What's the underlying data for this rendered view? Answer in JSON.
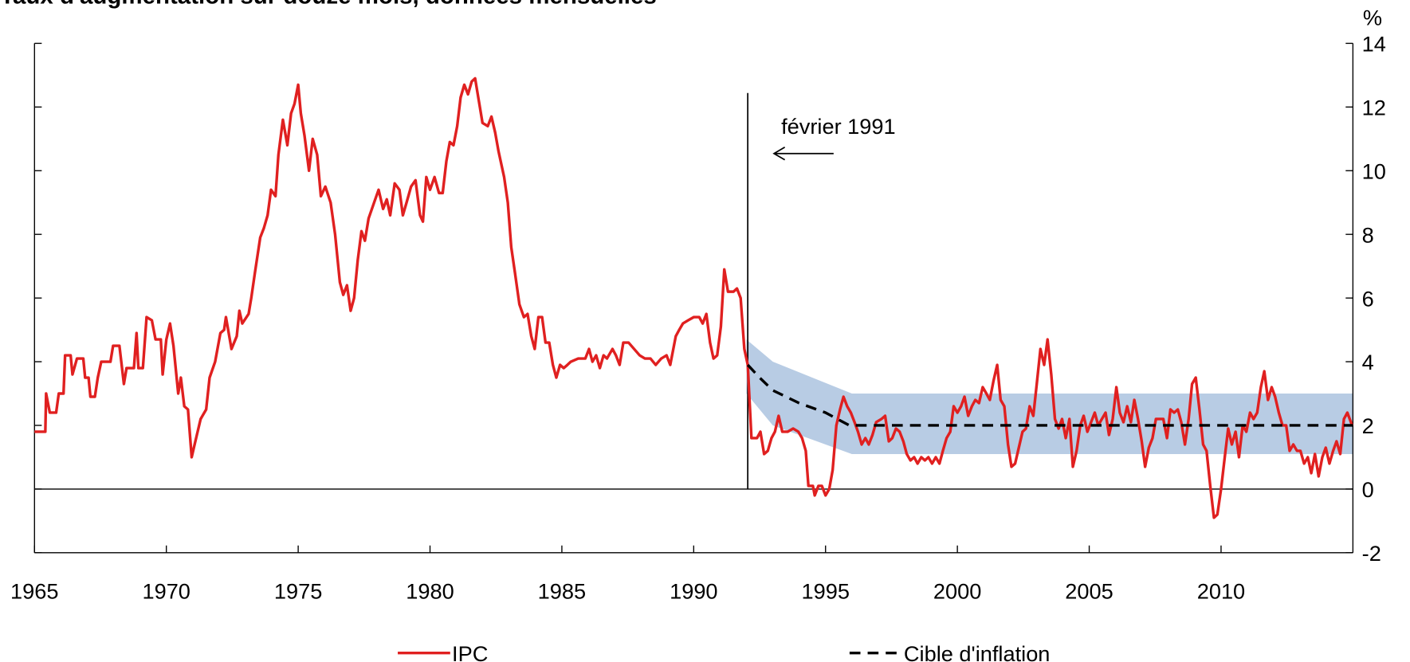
{
  "chart_data": {
    "type": "line",
    "title": "Taux d'augmentation sur douze mois, données mensuelles",
    "y_unit": "%",
    "xlim": [
      1965,
      2015
    ],
    "xticks": [
      1965,
      1970,
      1975,
      1980,
      1985,
      1990,
      1995,
      2000,
      2005,
      2010
    ],
    "ylim": [
      -2,
      14
    ],
    "yticks": [
      -2,
      0,
      2,
      4,
      6,
      8,
      10,
      12,
      14
    ],
    "grid": false,
    "legend": "bottom",
    "annotation": {
      "text": "février 1991",
      "x": 1992.05
    },
    "band": {
      "color": "#b8cce4",
      "x": [
        1992.0,
        1993.0,
        1996.0,
        2015.0
      ],
      "upper": [
        4.7,
        4.0,
        3.0,
        3.0
      ],
      "lower": [
        3.0,
        2.0,
        1.1,
        1.1
      ]
    },
    "series": [
      {
        "name": "IPC",
        "color": "#e02020",
        "style": "solid",
        "x": [
          1965.0,
          1965.41,
          1965.44,
          1965.58,
          1965.82,
          1965.92,
          1966.1,
          1966.16,
          1966.37,
          1966.44,
          1966.61,
          1966.85,
          1966.92,
          1967.05,
          1967.12,
          1967.29,
          1967.4,
          1967.53,
          1967.88,
          1967.98,
          1968.22,
          1968.39,
          1968.49,
          1968.77,
          1968.87,
          1968.94,
          1969.11,
          1969.25,
          1969.45,
          1969.59,
          1969.79,
          1969.86,
          1970.0,
          1970.14,
          1970.27,
          1970.45,
          1970.55,
          1970.68,
          1970.82,
          1970.96,
          1971.1,
          1971.3,
          1971.51,
          1971.64,
          1971.85,
          1972.05,
          1972.19,
          1972.26,
          1972.47,
          1972.67,
          1972.77,
          1972.88,
          1973.12,
          1973.22,
          1973.36,
          1973.56,
          1973.7,
          1973.84,
          1973.97,
          1974.14,
          1974.25,
          1974.42,
          1974.59,
          1974.73,
          1974.86,
          1975.0,
          1975.1,
          1975.24,
          1975.41,
          1975.55,
          1975.72,
          1975.86,
          1976.03,
          1976.23,
          1976.4,
          1976.58,
          1976.71,
          1976.85,
          1976.99,
          1977.12,
          1977.26,
          1977.4,
          1977.53,
          1977.67,
          1977.88,
          1978.05,
          1978.22,
          1978.36,
          1978.49,
          1978.66,
          1978.84,
          1978.97,
          1979.11,
          1979.28,
          1979.45,
          1979.62,
          1979.73,
          1979.86,
          1980.0,
          1980.17,
          1980.34,
          1980.48,
          1980.62,
          1980.75,
          1980.89,
          1981.03,
          1981.16,
          1981.3,
          1981.44,
          1981.58,
          1981.71,
          1981.85,
          1981.99,
          1982.19,
          1982.33,
          1982.47,
          1982.6,
          1982.81,
          1982.95,
          1983.08,
          1983.22,
          1983.39,
          1983.56,
          1983.7,
          1983.84,
          1983.97,
          1984.11,
          1984.25,
          1984.38,
          1984.52,
          1984.66,
          1984.79,
          1984.93,
          1985.07,
          1985.21,
          1985.34,
          1985.62,
          1985.89,
          1986.03,
          1986.16,
          1986.3,
          1986.44,
          1986.58,
          1986.71,
          1986.92,
          1987.05,
          1987.19,
          1987.33,
          1987.53,
          1987.74,
          1987.95,
          1988.15,
          1988.36,
          1988.56,
          1988.77,
          1988.97,
          1989.11,
          1989.32,
          1989.45,
          1989.59,
          1989.79,
          1990.0,
          1990.21,
          1990.34,
          1990.48,
          1990.62,
          1990.75,
          1990.89,
          1991.03,
          1991.16,
          1991.3,
          1991.51,
          1991.64,
          1991.78,
          1991.92,
          1992.05,
          1992.19,
          1992.4,
          1992.53,
          1992.67,
          1992.81,
          1992.95,
          1993.08,
          1993.22,
          1993.36,
          1993.56,
          1993.77,
          1993.97,
          1994.11,
          1994.25,
          1994.35,
          1994.52,
          1994.59,
          1994.73,
          1994.86,
          1995.0,
          1995.14,
          1995.27,
          1995.41,
          1995.55,
          1995.68,
          1995.82,
          1995.96,
          1996.1,
          1996.23,
          1996.37,
          1996.51,
          1996.64,
          1996.78,
          1996.92,
          1997.12,
          1997.26,
          1997.4,
          1997.53,
          1997.67,
          1997.81,
          1997.95,
          1998.08,
          1998.22,
          1998.36,
          1998.49,
          1998.63,
          1998.77,
          1998.9,
          1999.04,
          1999.18,
          1999.32,
          1999.45,
          1999.59,
          1999.73,
          1999.86,
          2000.0,
          2000.14,
          2000.27,
          2000.41,
          2000.55,
          2000.68,
          2000.82,
          2000.96,
          2001.1,
          2001.23,
          2001.37,
          2001.51,
          2001.64,
          2001.78,
          2001.92,
          2002.05,
          2002.19,
          2002.33,
          2002.47,
          2002.6,
          2002.74,
          2002.88,
          2003.01,
          2003.15,
          2003.29,
          2003.42,
          2003.56,
          2003.7,
          2003.84,
          2003.97,
          2004.11,
          2004.25,
          2004.38,
          2004.52,
          2004.66,
          2004.79,
          2004.93,
          2005.07,
          2005.21,
          2005.34,
          2005.48,
          2005.62,
          2005.75,
          2005.89,
          2006.03,
          2006.16,
          2006.3,
          2006.44,
          2006.58,
          2006.71,
          2006.85,
          2006.99,
          2007.12,
          2007.26,
          2007.4,
          2007.53,
          2007.67,
          2007.81,
          2007.95,
          2008.08,
          2008.22,
          2008.36,
          2008.49,
          2008.63,
          2008.77,
          2008.9,
          2009.04,
          2009.18,
          2009.32,
          2009.45,
          2009.59,
          2009.73,
          2009.86,
          2010.0,
          2010.14,
          2010.27,
          2010.41,
          2010.55,
          2010.68,
          2010.82,
          2010.96,
          2011.1,
          2011.23,
          2011.37,
          2011.51,
          2011.64,
          2011.78,
          2011.92,
          2012.05,
          2012.19,
          2012.33,
          2012.47,
          2012.6,
          2012.74,
          2012.88,
          2013.01,
          2013.15,
          2013.29,
          2013.42,
          2013.56,
          2013.7,
          2013.84,
          2013.97,
          2014.11,
          2014.25,
          2014.38,
          2014.52,
          2014.66,
          2014.79,
          2014.97
        ],
        "values": [
          1.8,
          1.8,
          3.0,
          2.4,
          2.4,
          3.0,
          3.0,
          4.2,
          4.2,
          3.6,
          4.1,
          4.1,
          3.5,
          3.5,
          2.9,
          2.9,
          3.5,
          4.0,
          4.0,
          4.5,
          4.5,
          3.3,
          3.8,
          3.8,
          4.9,
          3.8,
          3.8,
          5.4,
          5.3,
          4.7,
          4.7,
          3.6,
          4.7,
          5.2,
          4.5,
          3.0,
          3.5,
          2.6,
          2.5,
          1.0,
          1.5,
          2.2,
          2.5,
          3.5,
          4.0,
          4.9,
          5.0,
          5.4,
          4.4,
          4.8,
          5.6,
          5.2,
          5.5,
          6.0,
          6.8,
          7.9,
          8.2,
          8.6,
          9.4,
          9.2,
          10.5,
          11.6,
          10.8,
          11.8,
          12.1,
          12.7,
          11.8,
          11.1,
          10.0,
          11.0,
          10.5,
          9.2,
          9.5,
          9.0,
          8.0,
          6.5,
          6.1,
          6.4,
          5.6,
          6.0,
          7.2,
          8.1,
          7.8,
          8.5,
          9.0,
          9.4,
          8.8,
          9.1,
          8.6,
          9.6,
          9.4,
          8.6,
          9.0,
          9.5,
          9.7,
          8.6,
          8.4,
          9.8,
          9.4,
          9.8,
          9.3,
          9.3,
          10.3,
          10.9,
          10.8,
          11.4,
          12.3,
          12.7,
          12.4,
          12.8,
          12.9,
          12.2,
          11.5,
          11.4,
          11.7,
          11.2,
          10.6,
          9.8,
          9.0,
          7.6,
          6.8,
          5.8,
          5.4,
          5.5,
          4.8,
          4.4,
          5.4,
          5.4,
          4.6,
          4.6,
          3.9,
          3.5,
          3.9,
          3.8,
          3.9,
          4.0,
          4.1,
          4.1,
          4.4,
          4.0,
          4.2,
          3.8,
          4.2,
          4.1,
          4.4,
          4.2,
          3.9,
          4.6,
          4.6,
          4.4,
          4.2,
          4.1,
          4.1,
          3.9,
          4.1,
          4.2,
          3.9,
          4.8,
          5.0,
          5.2,
          5.3,
          5.4,
          5.4,
          5.2,
          5.5,
          4.6,
          4.1,
          4.2,
          5.1,
          6.9,
          6.2,
          6.2,
          6.3,
          6.0,
          4.4,
          3.9,
          1.6,
          1.6,
          1.8,
          1.1,
          1.2,
          1.6,
          1.8,
          2.3,
          1.8,
          1.8,
          1.9,
          1.8,
          1.6,
          1.2,
          0.1,
          0.1,
          -0.2,
          0.1,
          0.1,
          -0.2,
          0.0,
          0.6,
          2.0,
          2.5,
          2.9,
          2.6,
          2.4,
          2.1,
          1.8,
          1.4,
          1.6,
          1.4,
          1.7,
          2.1,
          2.2,
          2.3,
          1.5,
          1.6,
          1.9,
          1.8,
          1.5,
          1.1,
          0.9,
          1.0,
          0.8,
          1.0,
          0.9,
          1.0,
          0.8,
          1.0,
          0.8,
          1.2,
          1.6,
          1.8,
          2.6,
          2.4,
          2.6,
          2.9,
          2.3,
          2.6,
          2.8,
          2.7,
          3.2,
          3.0,
          2.8,
          3.4,
          3.9,
          2.8,
          2.6,
          1.4,
          0.7,
          0.8,
          1.3,
          1.8,
          1.9,
          2.6,
          2.3,
          3.3,
          4.4,
          3.9,
          4.7,
          3.6,
          2.2,
          1.9,
          2.2,
          1.6,
          2.2,
          0.7,
          1.2,
          2.0,
          2.3,
          1.8,
          2.1,
          2.4,
          2.0,
          2.2,
          2.4,
          1.7,
          2.2,
          3.2,
          2.4,
          2.1,
          2.6,
          2.1,
          2.8,
          2.2,
          1.5,
          0.7,
          1.3,
          1.6,
          2.2,
          2.2,
          2.2,
          1.6,
          2.5,
          2.4,
          2.5,
          2.1,
          1.4,
          2.2,
          3.3,
          3.5,
          2.5,
          1.4,
          1.2,
          0.1,
          -0.9,
          -0.8,
          0.0,
          1.0,
          1.9,
          1.4,
          1.8,
          1.0,
          2.0,
          1.8,
          2.4,
          2.2,
          2.4,
          3.2,
          3.7,
          2.8,
          3.2,
          2.9,
          2.4,
          2.0,
          2.0,
          1.2,
          1.4,
          1.2,
          1.2,
          0.8,
          1.0,
          0.5,
          1.1,
          0.4,
          1.0,
          1.3,
          0.8,
          1.2,
          1.5,
          1.1,
          2.2,
          2.4,
          2.0
        ]
      },
      {
        "name": "Cible d'inflation",
        "color": "#000000",
        "style": "dashed",
        "x": [
          1992.05,
          1992.5,
          1993.0,
          1994.0,
          1995.0,
          1995.9,
          2015.0
        ],
        "values": [
          3.9,
          3.5,
          3.1,
          2.7,
          2.4,
          2.0,
          2.0
        ]
      }
    ]
  }
}
